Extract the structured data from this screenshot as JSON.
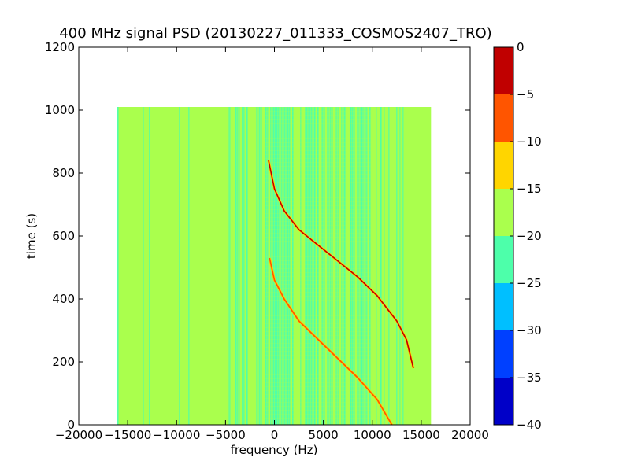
{
  "chart_data": {
    "type": "heatmap",
    "title": "400 MHz signal PSD (20130227_011333_COSMOS2407_TRO)",
    "xlabel": "frequency (Hz)",
    "ylabel": "time (s)",
    "xlim": [
      -20000,
      20000
    ],
    "ylim": [
      0,
      1200
    ],
    "xticks": [
      "−20000",
      "−15000",
      "−10000",
      "−5000",
      "0",
      "5000",
      "10000",
      "15000",
      "20000"
    ],
    "yticks": [
      "0",
      "200",
      "400",
      "600",
      "800",
      "1000",
      "1200"
    ],
    "data_extent": {
      "x": [
        -16000,
        16000
      ],
      "y": [
        0,
        1010
      ]
    },
    "background_level_dB": {
      "band_edges": -17,
      "band_center": -21
    },
    "background_band_x": [
      -1000,
      10000
    ],
    "traces": [
      {
        "peak_level_dB": -2,
        "points": [
          [
            -600,
            840
          ],
          [
            0,
            750
          ],
          [
            1000,
            680
          ],
          [
            2500,
            620
          ],
          [
            4500,
            570
          ],
          [
            6500,
            520
          ],
          [
            8500,
            470
          ],
          [
            10500,
            410
          ],
          [
            12500,
            330
          ],
          [
            13500,
            270
          ],
          [
            14200,
            180
          ]
        ]
      },
      {
        "peak_level_dB": -6,
        "points": [
          [
            -500,
            530
          ],
          [
            0,
            460
          ],
          [
            1000,
            400
          ],
          [
            2500,
            330
          ],
          [
            4500,
            270
          ],
          [
            6500,
            210
          ],
          [
            8500,
            150
          ],
          [
            10500,
            80
          ],
          [
            12000,
            0
          ]
        ]
      }
    ],
    "colorbar": {
      "ticks": [
        "0",
        "−5",
        "−10",
        "−15",
        "−20",
        "−25",
        "−30",
        "−35",
        "−40"
      ],
      "range": [
        -40,
        0
      ],
      "levels": [
        {
          "from": -5,
          "to": 0,
          "color": "#c00000"
        },
        {
          "from": -10,
          "to": -5,
          "color": "#ff5500"
        },
        {
          "from": -15,
          "to": -10,
          "color": "#ffd500"
        },
        {
          "from": -20,
          "to": -15,
          "color": "#aaff4d"
        },
        {
          "from": -25,
          "to": -20,
          "color": "#4dffaa"
        },
        {
          "from": -30,
          "to": -25,
          "color": "#00bfff"
        },
        {
          "from": -35,
          "to": -30,
          "color": "#0040ff"
        },
        {
          "from": -40,
          "to": -35,
          "color": "#0000c8"
        }
      ]
    }
  }
}
